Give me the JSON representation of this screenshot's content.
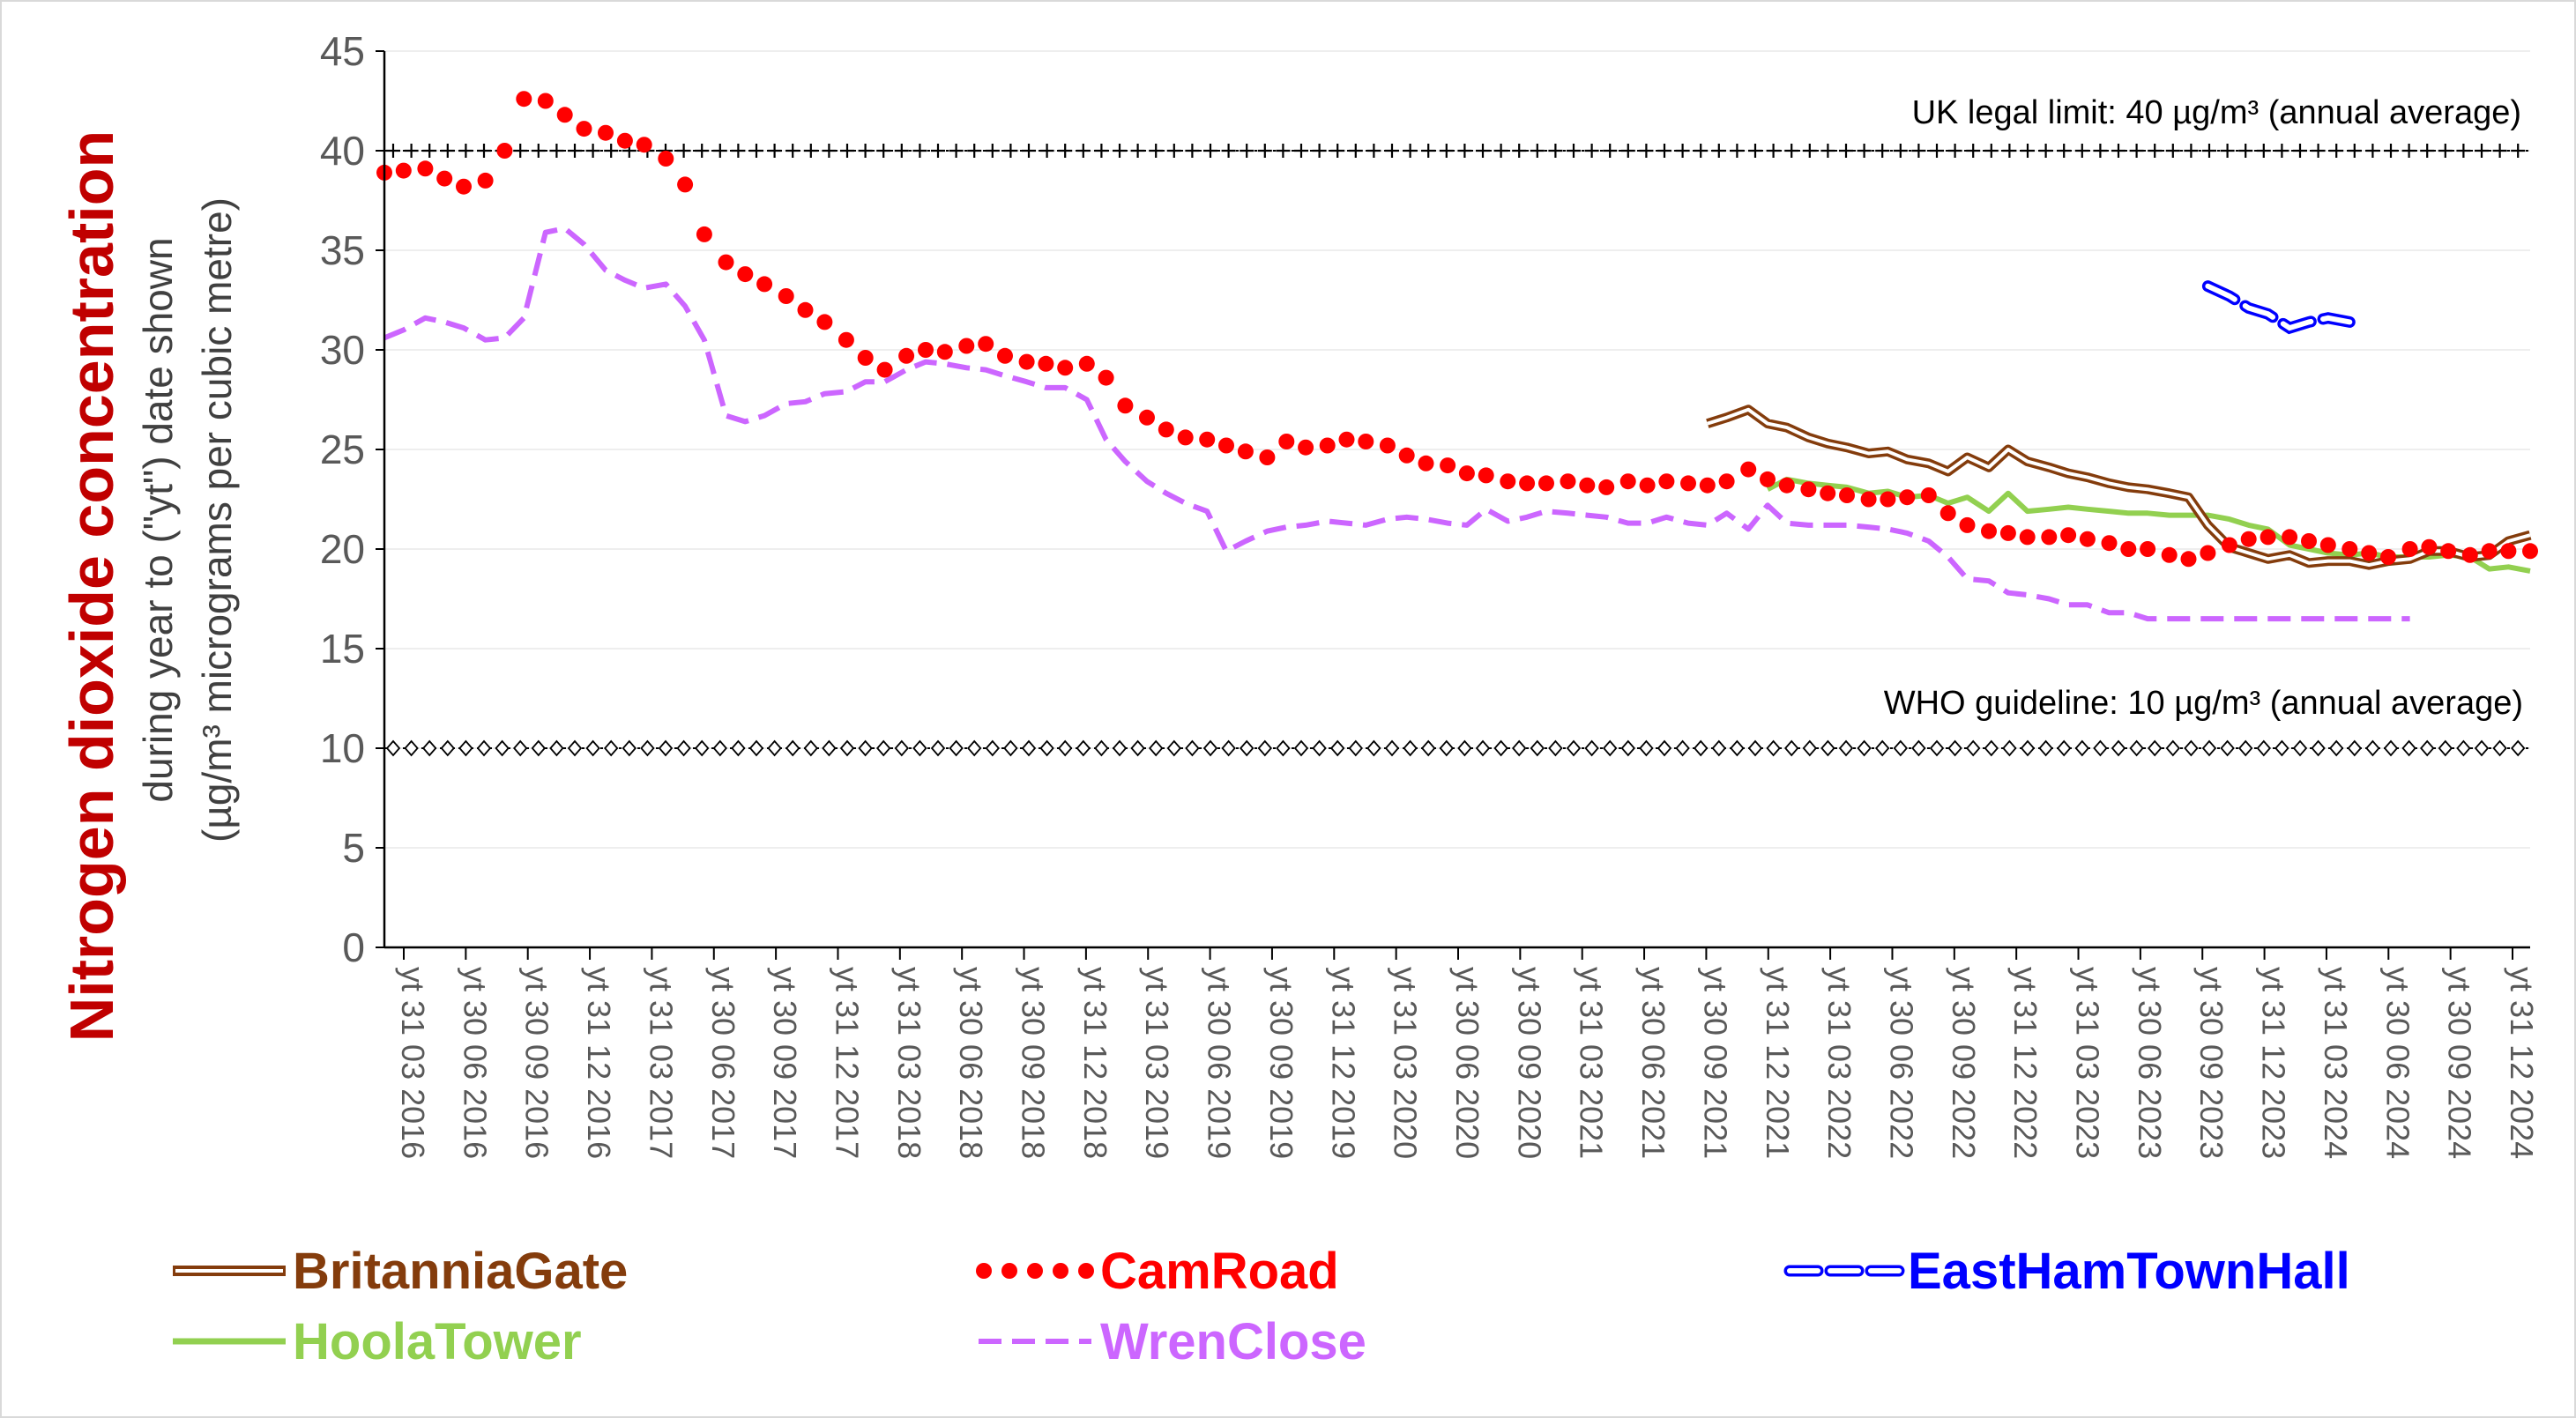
{
  "chart_data": {
    "type": "line",
    "title": "",
    "ylabel_main": "Nitrogen dioxide concentration",
    "ylabel_sub1": "during year to (\"yt\") date shown",
    "ylabel_sub2": "(µg/m³ micrograms per cubic metre)",
    "ylim": [
      0,
      45
    ],
    "yticks": [
      0,
      5,
      10,
      15,
      20,
      25,
      30,
      35,
      40,
      45
    ],
    "grid": true,
    "legend_position": "bottom",
    "xlim": [
      2016.25,
      2025.17
    ],
    "x_tick_labels": [
      "yt 31 03 2016",
      "yt 30 06 2016",
      "yt 30 09 2016",
      "yt 31 12 2016",
      "yt 31 03 2017",
      "yt 30 06 2017",
      "yt 30 09 2017",
      "yt 31 12 2017",
      "yt 31 03 2018",
      "yt 30 06 2018",
      "yt 30 09 2018",
      "yt 31 12 2018",
      "yt 31 03 2019",
      "yt 30 06 2019",
      "yt 30 09 2019",
      "yt 31 12 2019",
      "yt 31 03 2020",
      "yt 30 06 2020",
      "yt 30 09 2020",
      "yt 31 03 2021",
      "yt 30 06 2021",
      "yt 30 09 2021",
      "yt 31 12 2021",
      "yt 31 03 2022",
      "yt 30 06 2022",
      "yt 30 09 2022",
      "yt 31 12 2022",
      "yt 31 03 2023",
      "yt 30 06 2023",
      "yt 30 09 2023",
      "yt 31 12 2023",
      "yt 31 03 2024",
      "yt 30 06 2024",
      "yt 30 09 2024",
      "yt 31 12 2024"
    ],
    "reference_lines": [
      {
        "label": "UK legal limit:  40 µg/m³ (annual average)",
        "y": 40,
        "color": "#000000",
        "marker": "plus"
      },
      {
        "label": "WHO guideline:  10 µg/m³ (annual average)",
        "y": 10,
        "color": "#000000",
        "marker": "diamond"
      }
    ],
    "series": [
      {
        "name": "BritanniaGate",
        "color": "#843c0c",
        "style": "double",
        "x": [
          2021.75,
          2021.83,
          2021.92,
          2022.0,
          2022.08,
          2022.17,
          2022.25,
          2022.33,
          2022.42,
          2022.5,
          2022.58,
          2022.67,
          2022.75,
          2022.83,
          2022.92,
          2023.0,
          2023.08,
          2023.17,
          2023.25,
          2023.33,
          2023.42,
          2023.5,
          2023.58,
          2023.67,
          2023.75,
          2023.83,
          2023.92,
          2024.0,
          2024.08,
          2024.17,
          2024.25,
          2024.33,
          2024.42,
          2024.5,
          2024.58,
          2024.67,
          2024.75,
          2024.83,
          2024.92,
          2025.0,
          2025.08,
          2025.17
        ],
        "y": [
          26.3,
          26.6,
          27.0,
          26.3,
          26.1,
          25.6,
          25.3,
          25.1,
          24.8,
          24.9,
          24.5,
          24.3,
          23.9,
          24.6,
          24.1,
          25.0,
          24.4,
          24.1,
          23.8,
          23.6,
          23.3,
          23.1,
          23.0,
          22.8,
          22.6,
          21.2,
          20.1,
          19.8,
          19.5,
          19.7,
          19.3,
          19.4,
          19.4,
          19.2,
          19.4,
          19.5,
          19.9,
          19.9,
          19.6,
          19.7,
          20.4,
          20.7
        ]
      },
      {
        "name": "CamRoad",
        "color": "#ff0000",
        "style": "dotted",
        "x": [
          2016.25,
          2016.33,
          2016.42,
          2016.5,
          2016.58,
          2016.67,
          2016.75,
          2016.83,
          2016.92,
          2017.0,
          2017.08,
          2017.17,
          2017.25,
          2017.33,
          2017.42,
          2017.5,
          2017.58,
          2017.67,
          2017.75,
          2017.83,
          2017.92,
          2018.0,
          2018.08,
          2018.17,
          2018.25,
          2018.33,
          2018.42,
          2018.5,
          2018.58,
          2018.67,
          2018.75,
          2018.83,
          2018.92,
          2019.0,
          2019.08,
          2019.17,
          2019.25,
          2019.33,
          2019.42,
          2019.5,
          2019.58,
          2019.67,
          2019.75,
          2019.83,
          2019.92,
          2020.0,
          2020.08,
          2020.17,
          2020.25,
          2020.33,
          2020.42,
          2020.5,
          2020.58,
          2020.67,
          2020.75,
          2020.83,
          2020.92,
          2021.0,
          2021.08,
          2021.17,
          2021.25,
          2021.33,
          2021.42,
          2021.5,
          2021.58,
          2021.67,
          2021.75,
          2021.83,
          2021.92,
          2022.0,
          2022.08,
          2022.17,
          2022.25,
          2022.33,
          2022.42,
          2022.5,
          2022.58,
          2022.67,
          2022.75,
          2022.83,
          2022.92,
          2023.0,
          2023.08,
          2023.17,
          2023.25,
          2023.33,
          2023.42,
          2023.5,
          2023.58,
          2023.67,
          2023.75,
          2023.83,
          2023.92,
          2024.0,
          2024.08,
          2024.17,
          2024.25,
          2024.33,
          2024.42,
          2024.5,
          2024.58,
          2024.67,
          2024.75,
          2024.83,
          2024.92,
          2025.0,
          2025.08,
          2025.17
        ],
        "y": [
          38.9,
          39.0,
          39.1,
          38.6,
          38.2,
          38.5,
          40.0,
          42.6,
          42.5,
          41.8,
          41.1,
          40.9,
          40.5,
          40.3,
          39.6,
          38.3,
          35.8,
          34.4,
          33.8,
          33.3,
          32.7,
          32.0,
          31.4,
          30.5,
          29.6,
          29.0,
          29.7,
          30.0,
          29.9,
          30.2,
          30.3,
          29.7,
          29.4,
          29.3,
          29.1,
          29.3,
          28.6,
          27.2,
          26.6,
          26.0,
          25.6,
          25.5,
          25.2,
          24.9,
          24.6,
          25.4,
          25.1,
          25.2,
          25.5,
          25.4,
          25.2,
          24.7,
          24.3,
          24.2,
          23.8,
          23.7,
          23.4,
          23.3,
          23.3,
          23.4,
          23.2,
          23.1,
          23.4,
          23.2,
          23.4,
          23.3,
          23.2,
          23.4,
          24.0,
          23.5,
          23.2,
          23.0,
          22.8,
          22.7,
          22.5,
          22.5,
          22.6,
          22.7,
          21.8,
          21.2,
          20.9,
          20.8,
          20.6,
          20.6,
          20.7,
          20.5,
          20.3,
          20.0,
          20.0,
          19.7,
          19.5,
          19.8,
          20.2,
          20.5,
          20.6,
          20.6,
          20.4,
          20.2,
          20.0,
          19.8,
          19.6,
          20.0,
          20.1,
          19.9,
          19.7,
          19.9,
          19.9,
          19.9
        ]
      },
      {
        "name": "EastHamTownHall",
        "color": "#0000ff",
        "style": "double-dashed",
        "x": [
          2023.83,
          2023.92,
          2024.0,
          2024.08,
          2024.17,
          2024.25,
          2024.33,
          2024.42
        ],
        "y": [
          33.2,
          32.7,
          32.1,
          31.8,
          31.1,
          31.4,
          31.6,
          31.4
        ]
      },
      {
        "name": "HoolaTower",
        "color": "#92d050",
        "style": "solid",
        "x": [
          2022.0,
          2022.08,
          2022.17,
          2022.25,
          2022.33,
          2022.42,
          2022.5,
          2022.58,
          2022.67,
          2022.75,
          2022.83,
          2022.92,
          2023.0,
          2023.08,
          2023.17,
          2023.25,
          2023.33,
          2023.42,
          2023.5,
          2023.58,
          2023.67,
          2023.75,
          2023.83,
          2023.92,
          2024.0,
          2024.08,
          2024.17,
          2024.25,
          2024.33,
          2024.42,
          2024.5,
          2024.58,
          2024.67,
          2024.75,
          2024.83,
          2024.92,
          2025.0,
          2025.08,
          2025.17
        ],
        "y": [
          23.0,
          23.5,
          23.3,
          23.2,
          23.1,
          22.8,
          22.9,
          22.6,
          22.7,
          22.3,
          22.6,
          21.9,
          22.8,
          21.9,
          22.0,
          22.1,
          22.0,
          21.9,
          21.8,
          21.8,
          21.7,
          21.7,
          21.7,
          21.5,
          21.2,
          21.0,
          20.2,
          20.0,
          19.8,
          19.7,
          19.8,
          19.6,
          19.6,
          19.6,
          19.7,
          19.6,
          19.0,
          19.1,
          18.9
        ]
      },
      {
        "name": "WrenClose",
        "color": "#cc66ff",
        "style": "dashed",
        "x": [
          2016.25,
          2016.33,
          2016.42,
          2016.5,
          2016.58,
          2016.67,
          2016.75,
          2016.83,
          2016.92,
          2017.0,
          2017.08,
          2017.17,
          2017.25,
          2017.33,
          2017.42,
          2017.5,
          2017.58,
          2017.67,
          2017.75,
          2017.83,
          2017.92,
          2018.0,
          2018.08,
          2018.17,
          2018.25,
          2018.33,
          2018.42,
          2018.5,
          2018.58,
          2018.67,
          2018.75,
          2018.83,
          2018.92,
          2019.0,
          2019.08,
          2019.17,
          2019.25,
          2019.33,
          2019.42,
          2019.5,
          2019.58,
          2019.67,
          2019.75,
          2019.83,
          2019.92,
          2020.0,
          2020.08,
          2020.17,
          2020.25,
          2020.33,
          2020.42,
          2020.5,
          2020.58,
          2020.67,
          2020.75,
          2020.83,
          2020.92,
          2021.0,
          2021.08,
          2021.17,
          2021.25,
          2021.33,
          2021.42,
          2021.5,
          2021.58,
          2021.67,
          2021.75,
          2021.83,
          2021.92,
          2022.0,
          2022.08,
          2022.17,
          2022.25,
          2022.33,
          2022.42,
          2022.5,
          2022.58,
          2022.67,
          2022.75,
          2022.83,
          2022.92,
          2023.0,
          2023.08,
          2023.17,
          2023.25,
          2023.33,
          2023.42,
          2023.5,
          2023.58,
          2023.67,
          2023.75,
          2023.83,
          2023.92,
          2024.0,
          2024.08,
          2024.17,
          2024.25,
          2024.33,
          2024.42,
          2024.5,
          2024.58,
          2024.67
        ],
        "y": [
          30.6,
          31.0,
          31.6,
          31.4,
          31.1,
          30.5,
          30.6,
          31.6,
          35.9,
          36.1,
          35.3,
          34.0,
          33.5,
          33.1,
          33.3,
          32.2,
          30.5,
          26.7,
          26.4,
          26.7,
          27.3,
          27.4,
          27.8,
          27.9,
          28.4,
          28.4,
          29.0,
          29.4,
          29.3,
          29.1,
          29.0,
          28.7,
          28.4,
          28.1,
          28.1,
          27.5,
          25.5,
          24.4,
          23.4,
          22.8,
          22.3,
          21.9,
          19.9,
          20.4,
          20.9,
          21.1,
          21.2,
          21.4,
          21.3,
          21.2,
          21.5,
          21.6,
          21.5,
          21.3,
          21.2,
          22.0,
          21.4,
          21.6,
          21.9,
          21.8,
          21.7,
          21.6,
          21.3,
          21.3,
          21.6,
          21.3,
          21.2,
          21.8,
          21.0,
          22.2,
          21.3,
          21.2,
          21.2,
          21.2,
          21.1,
          21.0,
          20.8,
          20.4,
          19.6,
          18.5,
          18.4,
          17.8,
          17.7,
          17.5,
          17.2,
          17.2,
          16.8,
          16.8,
          16.5,
          16.5,
          16.5,
          16.5,
          16.5,
          16.5,
          16.5,
          16.5,
          16.5,
          16.5,
          16.5,
          16.5,
          16.5,
          16.5
        ]
      }
    ]
  }
}
